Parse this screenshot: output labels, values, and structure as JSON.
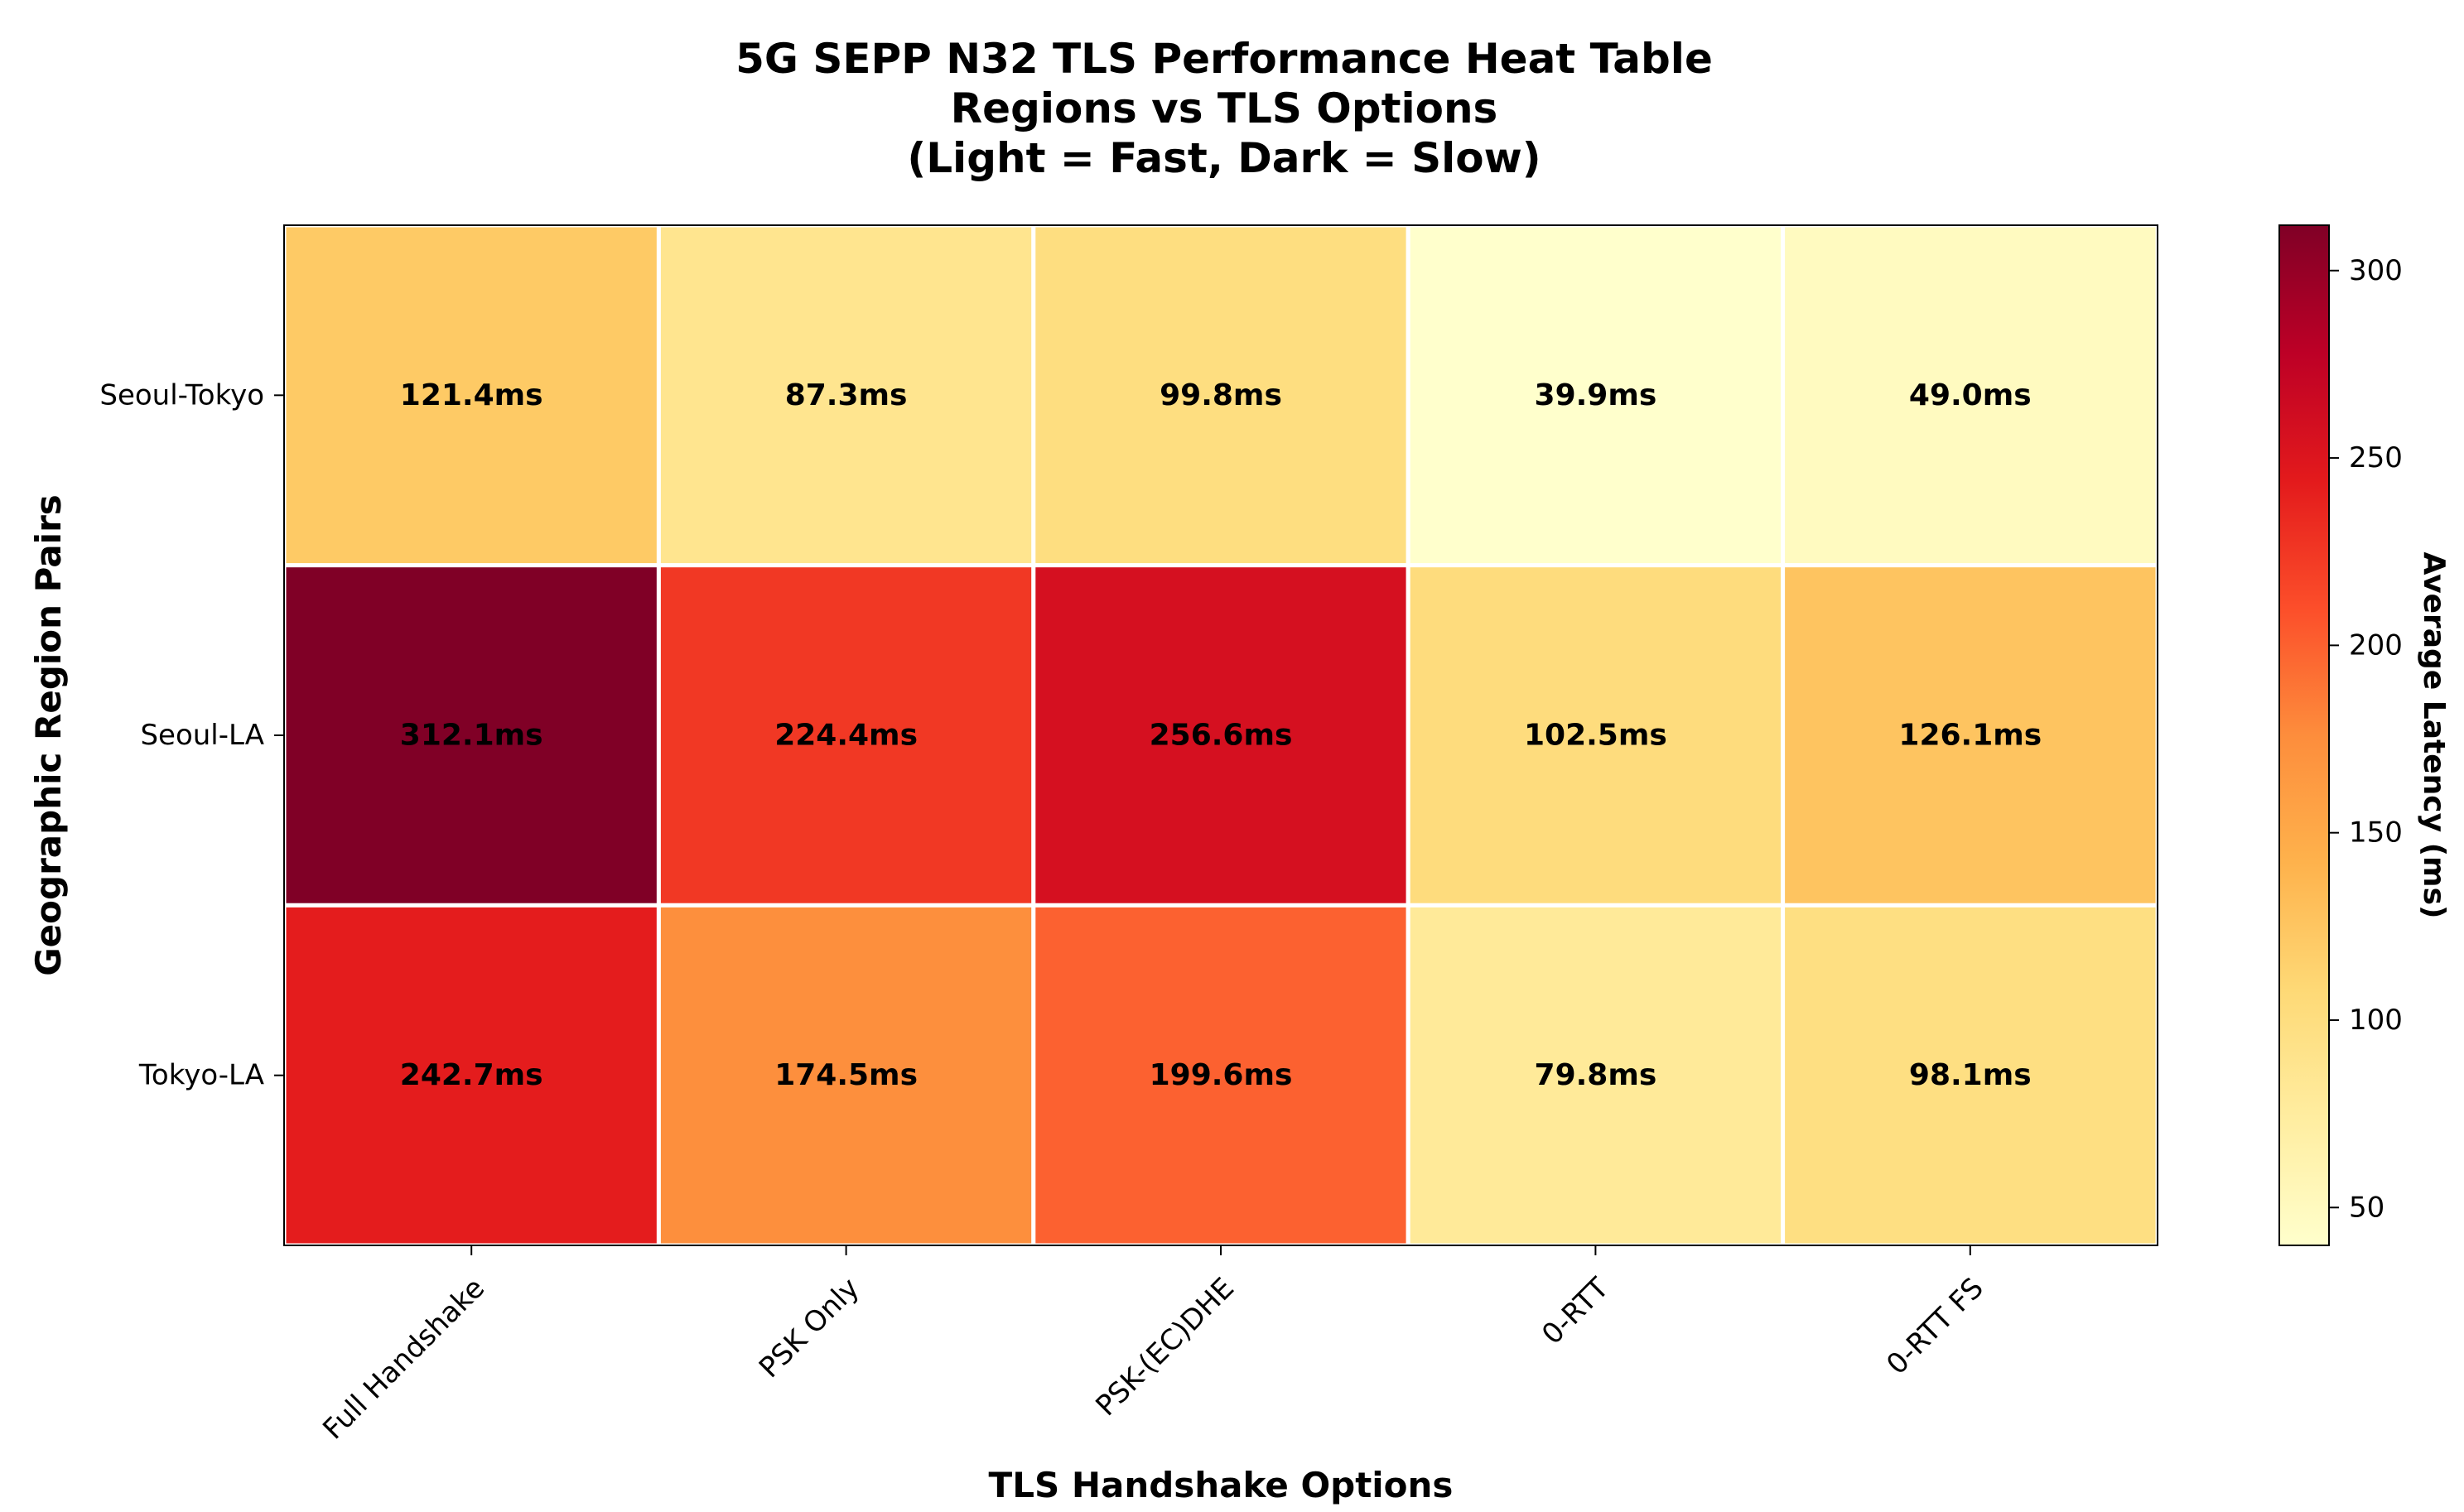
{
  "chart_data": {
    "type": "heatmap",
    "title_lines": [
      "5G SEPP N32 TLS Performance Heat Table",
      "Regions vs TLS Options",
      "(Light = Fast, Dark = Slow)"
    ],
    "xlabel": "TLS Handshake Options",
    "ylabel": "Geographic Region Pairs",
    "x_categories": [
      "Full Handshake",
      "PSK Only",
      "PSK-(EC)DHE",
      "0-RTT",
      "0-RTT FS"
    ],
    "y_categories": [
      "Seoul-Tokyo",
      "Seoul-LA",
      "Tokyo-LA"
    ],
    "values": [
      [
        121.4,
        87.3,
        99.8,
        39.9,
        49.0
      ],
      [
        312.1,
        224.4,
        256.6,
        102.5,
        126.1
      ],
      [
        242.7,
        174.5,
        199.6,
        79.8,
        98.1
      ]
    ],
    "value_suffix": "ms",
    "colormap": "YlOrRd",
    "colorbar": {
      "label": "Average Latency (ms)",
      "range": [
        39.9,
        312.1
      ],
      "ticks": [
        50,
        100,
        150,
        200,
        250,
        300
      ]
    }
  }
}
